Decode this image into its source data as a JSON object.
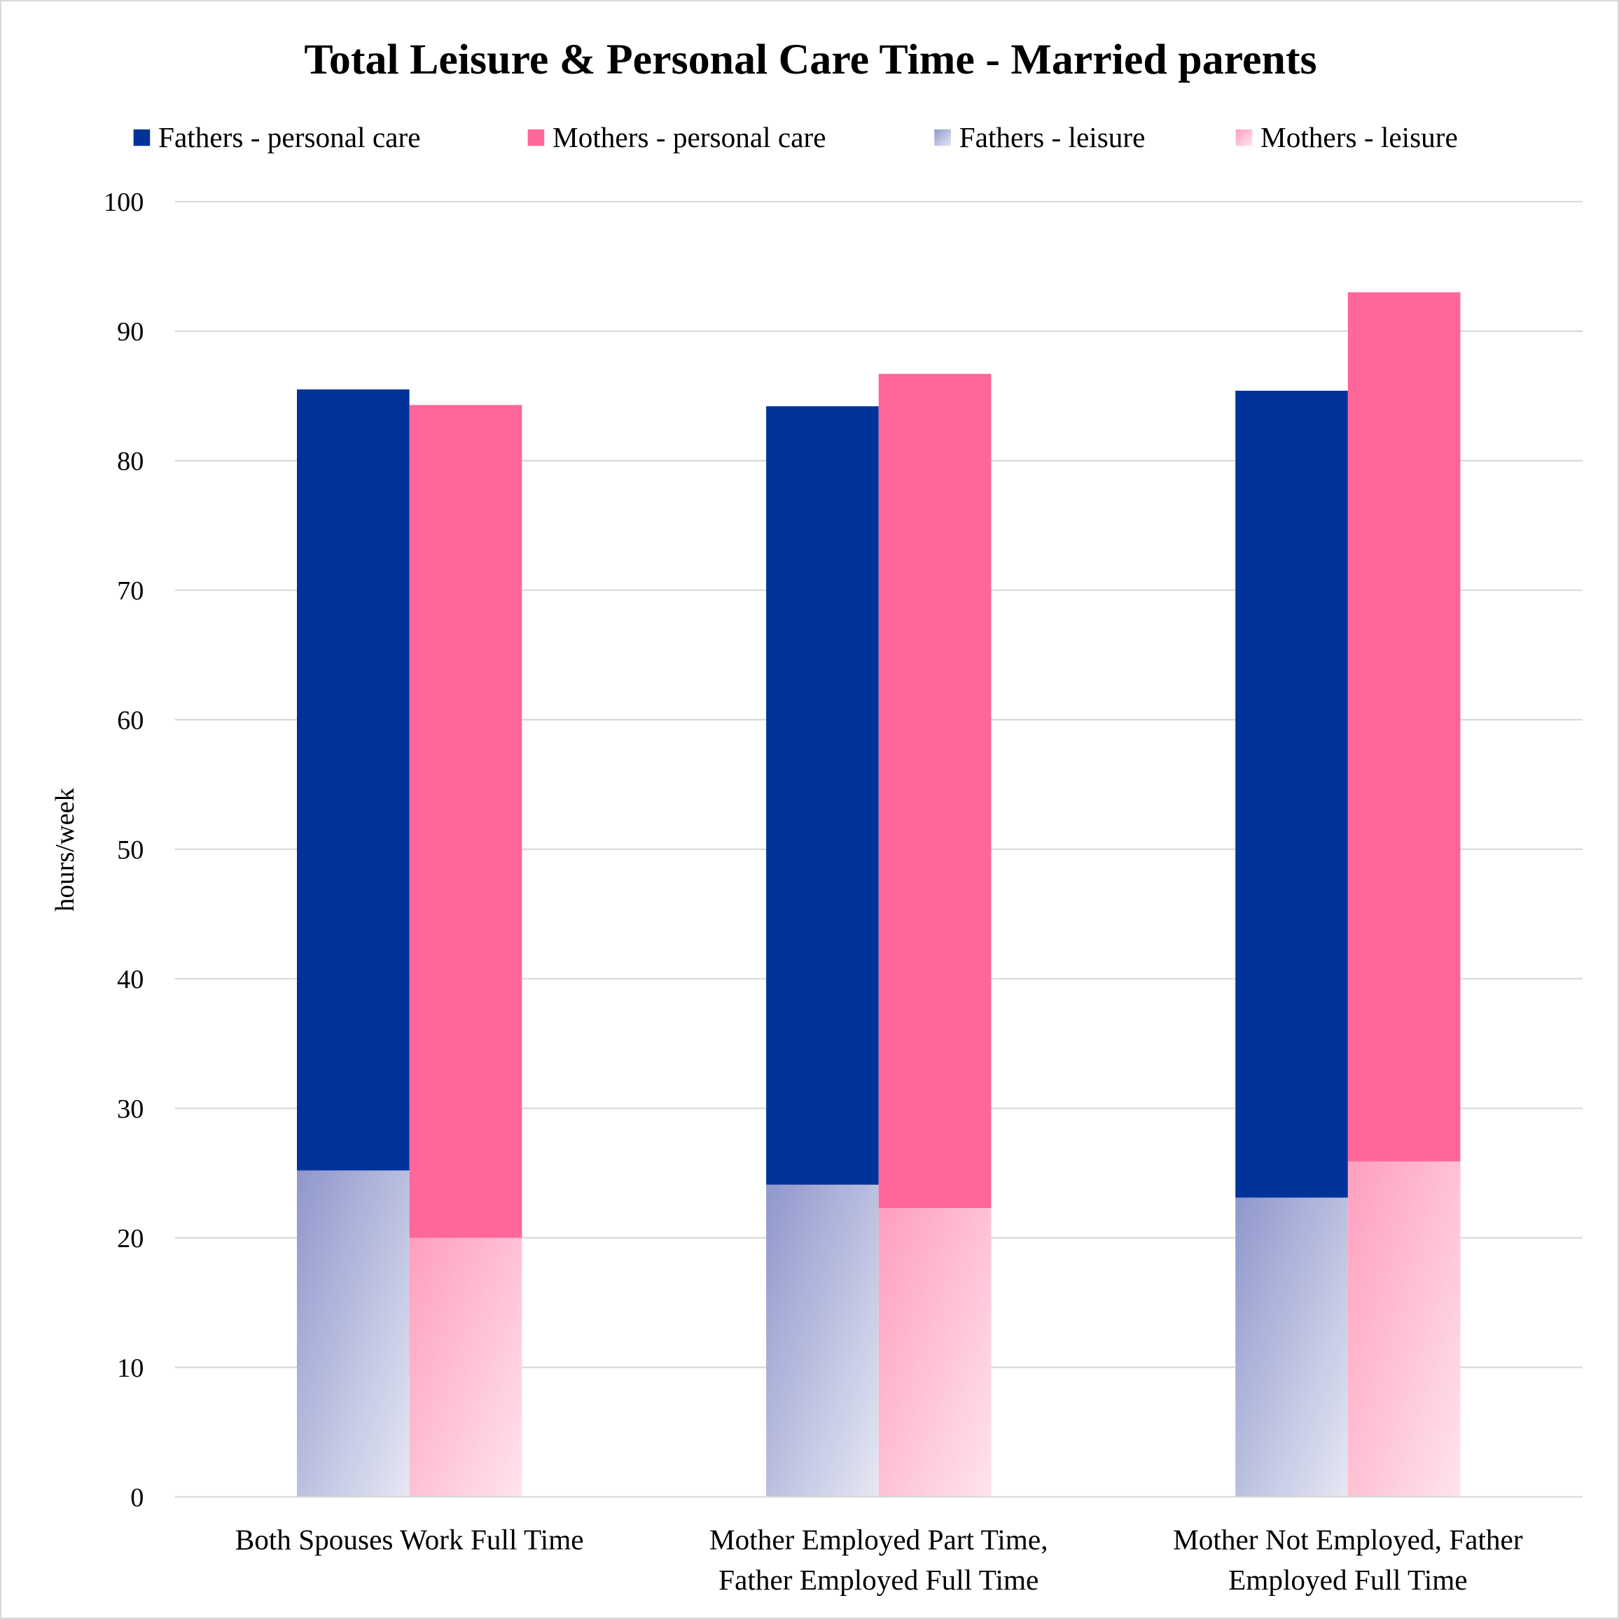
{
  "chart_data": {
    "type": "bar",
    "stacked": true,
    "title": "Total Leisure & Personal Care Time - Married parents",
    "xlabel": "",
    "ylabel": "hours/week",
    "ylim": [
      0,
      100
    ],
    "yticks": [
      0,
      10,
      20,
      30,
      40,
      50,
      60,
      70,
      80,
      90,
      100
    ],
    "grid": true,
    "legend_position": "top",
    "categories": [
      [
        "Both Spouses Work Full Time"
      ],
      [
        "Mother Employed Part Time,",
        "Father Employed Full Time"
      ],
      [
        "Mother Not Employed, Father",
        "Employed Full Time"
      ]
    ],
    "legend": [
      "Fathers - personal care",
      "Mothers - personal care",
      "Fathers - leisure",
      "Mothers - leisure"
    ],
    "series": [
      {
        "name": "Fathers - leisure",
        "stack": "Fathers",
        "values": [
          25.2,
          24.1,
          23.1
        ],
        "color": "#8f97cc",
        "color2": "#e6e8f3"
      },
      {
        "name": "Fathers - personal care",
        "stack": "Fathers",
        "values": [
          60.3,
          60.1,
          62.3
        ],
        "color": "#003399"
      },
      {
        "name": "Mothers - leisure",
        "stack": "Mothers",
        "values": [
          20.0,
          22.3,
          25.9
        ],
        "color": "#ff9fbd",
        "color2": "#ffe4ec"
      },
      {
        "name": "Mothers - personal care",
        "stack": "Mothers",
        "values": [
          64.3,
          64.4,
          67.1
        ],
        "color": "#ff6699"
      }
    ]
  }
}
